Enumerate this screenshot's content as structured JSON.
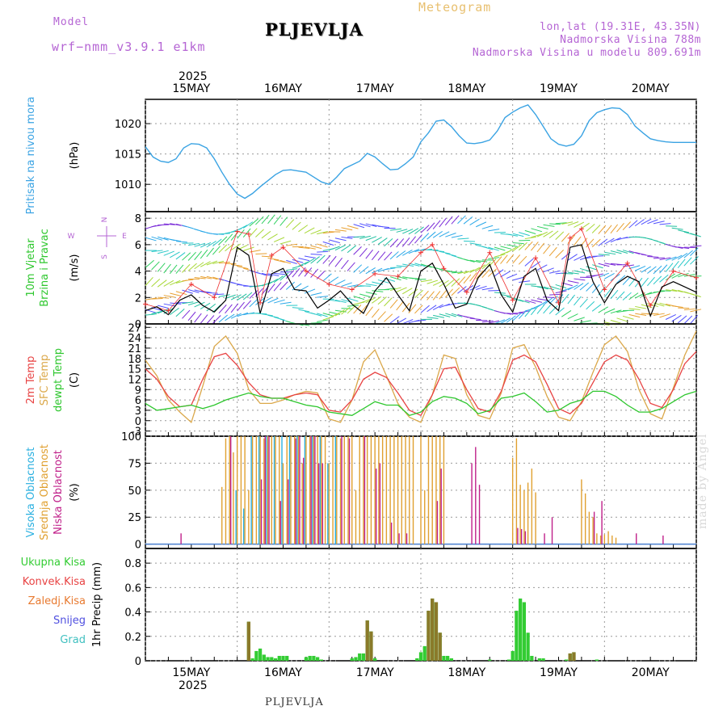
{
  "header": {
    "model_label": "Model",
    "model_name": "wrf−nmm_v3.9.1  e1km",
    "station": "PLJEVLJA",
    "meteogram": "Meteogram",
    "lonlat": "lon,lat (19.31E, 43.35N)",
    "elevation": "Nadmorska Visina 788m",
    "model_elevation": "Nadmorska Visina u modelu 809.691m"
  },
  "footer": {
    "station": "PLJEVLJA",
    "credit": "made by Angel"
  },
  "time_axis": {
    "year": "2025",
    "days": [
      "15MAY",
      "16MAY",
      "17MAY",
      "18MAY",
      "19MAY",
      "20MAY"
    ],
    "start_hour": 0,
    "end_hour": 144
  },
  "colors": {
    "pressure": "#3aa3e3",
    "temp2m": "#e84343",
    "sfc": "#dba84a",
    "dewpt": "#2ec72e",
    "high_cloud": "#2ab0e0",
    "mid_cloud": "#e0a030",
    "low_cloud": "#c0208a",
    "total_precip": "#33cc33",
    "conv_precip": "#e84343",
    "frozen": "#e87a30",
    "snow": "#5050e0",
    "hail": "#40c0c0",
    "wind_speed": "#000000",
    "gust": "#ee3030"
  },
  "chart_data": [
    {
      "type": "line",
      "panel": "pressure",
      "ylabel_lines": [
        "Pritisak na nivou mora"
      ],
      "unit": "(hPa)",
      "yticks": [
        1010,
        1015,
        1020
      ],
      "ylim": [
        1005.5,
        1024
      ],
      "series": [
        {
          "x": [
            0,
            2,
            4,
            6,
            8,
            10,
            12,
            14,
            16,
            18,
            20,
            22,
            24,
            26,
            28,
            30,
            32,
            34,
            36,
            38,
            40,
            42,
            44,
            46,
            48,
            50,
            52,
            54,
            56,
            58,
            60,
            62,
            64,
            66,
            68,
            70,
            72,
            74,
            76,
            78,
            80,
            82,
            84,
            86,
            88,
            90,
            92,
            94,
            96,
            98,
            100,
            102,
            104,
            106,
            108,
            110,
            112,
            114,
            116,
            118,
            120,
            122,
            124,
            126,
            128,
            130,
            132,
            134,
            136,
            138,
            140,
            142,
            144
          ],
          "y": [
            1016.2,
            1014.5,
            1013.8,
            1013.6,
            1014.2,
            1016.0,
            1016.7,
            1016.6,
            1016.0,
            1014.2,
            1012.0,
            1010.0,
            1008.4,
            1007.7,
            1008.5,
            1009.6,
            1010.6,
            1011.6,
            1012.3,
            1012.4,
            1012.2,
            1012.0,
            1011.2,
            1010.4,
            1010.0,
            1011.2,
            1012.6,
            1013.2,
            1013.8,
            1015.1,
            1014.5,
            1013.4,
            1012.4,
            1012.5,
            1013.4,
            1014.5,
            1017.0,
            1018.5,
            1020.4,
            1020.6,
            1019.5,
            1018.0,
            1016.8,
            1016.7,
            1016.9,
            1017.3,
            1018.8,
            1021.0,
            1021.9,
            1022.6,
            1023.1,
            1021.5,
            1019.5,
            1017.5,
            1016.6,
            1016.3,
            1016.6,
            1018.0,
            1020.5,
            1021.8,
            1022.3,
            1022.6,
            1022.5,
            1021.5,
            1019.6,
            1018.5,
            1017.5,
            1017.2,
            1017.0,
            1016.9,
            1016.9,
            1016.9,
            1016.9
          ]
        }
      ]
    },
    {
      "type": "line",
      "panel": "wind",
      "ylabel_lines": [
        "10m Vjetar",
        "Brzina i Pravac"
      ],
      "unit": "(m/s)",
      "yticks": [
        0,
        2,
        4,
        6,
        8
      ],
      "ylim": [
        0,
        8.5
      ],
      "compass": [
        "N",
        "E",
        "S",
        "W"
      ],
      "series": [
        {
          "name": "speed",
          "x": [
            0,
            3,
            6,
            9,
            12,
            15,
            18,
            21,
            24,
            27,
            30,
            33,
            36,
            39,
            42,
            45,
            48,
            51,
            54,
            57,
            60,
            63,
            66,
            69,
            72,
            75,
            78,
            81,
            84,
            87,
            90,
            93,
            96,
            99,
            102,
            105,
            108,
            111,
            114,
            117,
            120,
            123,
            126,
            129,
            132,
            135,
            138,
            141,
            144
          ],
          "y": [
            1.0,
            1.3,
            0.7,
            1.8,
            2.2,
            1.4,
            0.9,
            1.8,
            5.8,
            5.2,
            0.8,
            3.8,
            4.2,
            2.6,
            2.5,
            1.2,
            1.8,
            2.5,
            1.5,
            0.8,
            2.5,
            3.5,
            2.2,
            1.0,
            4.0,
            4.6,
            3.0,
            1.2,
            1.5,
            3.5,
            4.5,
            2.2,
            0.9,
            3.6,
            4.2,
            1.8,
            1.0,
            5.8,
            6.0,
            3.2,
            1.6,
            3.0,
            3.6,
            3.2,
            0.6,
            2.8,
            3.2,
            2.8,
            2.4
          ]
        },
        {
          "name": "gusts",
          "x": [
            0,
            6,
            12,
            18,
            24,
            27,
            30,
            33,
            36,
            42,
            48,
            54,
            60,
            66,
            72,
            75,
            78,
            84,
            90,
            96,
            102,
            108,
            111,
            114,
            120,
            126,
            132,
            138,
            144
          ],
          "y": [
            1.5,
            1.0,
            3.0,
            2.0,
            7.0,
            6.8,
            1.6,
            5.2,
            5.8,
            4.0,
            3.0,
            2.6,
            3.8,
            3.6,
            5.4,
            6.0,
            4.2,
            2.4,
            5.4,
            1.8,
            5.0,
            1.6,
            6.5,
            7.2,
            2.6,
            4.6,
            1.4,
            4.0,
            3.5
          ]
        }
      ]
    },
    {
      "type": "line",
      "panel": "temperature",
      "ylabel_lines": [
        "2m Temp",
        "SFC Temp",
        "dewpt Temp"
      ],
      "unit": "(C)",
      "yticks": [
        -3,
        0,
        3,
        6,
        9,
        12,
        15,
        18,
        21,
        24,
        27
      ],
      "ylim": [
        -4.5,
        28
      ],
      "x": [
        0,
        3,
        6,
        9,
        12,
        15,
        18,
        21,
        24,
        27,
        30,
        33,
        36,
        39,
        42,
        45,
        48,
        51,
        54,
        57,
        60,
        63,
        66,
        69,
        72,
        75,
        78,
        81,
        84,
        87,
        90,
        93,
        96,
        99,
        102,
        105,
        108,
        111,
        114,
        117,
        120,
        123,
        126,
        129,
        132,
        135,
        138,
        141,
        144
      ],
      "series": [
        {
          "name": "2m Temp",
          "y": [
            15.0,
            12.0,
            7.0,
            4.0,
            4.5,
            12.0,
            18.5,
            19.5,
            16.0,
            11.0,
            7.5,
            6.5,
            6.5,
            7.5,
            8.0,
            7.5,
            3.0,
            2.5,
            6.0,
            12.0,
            14.0,
            12.5,
            8.0,
            3.0,
            1.5,
            7.5,
            15.0,
            15.5,
            9.0,
            3.5,
            2.5,
            8.5,
            17.5,
            19.0,
            17.0,
            10.5,
            3.5,
            2.0,
            5.0,
            11.0,
            17.0,
            19.0,
            17.5,
            12.0,
            5.0,
            3.8,
            9.0,
            16.5,
            20.0
          ]
        },
        {
          "name": "SFC Temp",
          "y": [
            17.5,
            13.0,
            6.0,
            2.5,
            -0.5,
            10.0,
            21.5,
            24.5,
            19.5,
            9.0,
            5.0,
            5.0,
            6.0,
            7.5,
            8.5,
            8.0,
            0.5,
            -0.5,
            6.0,
            17.0,
            20.5,
            13.0,
            5.0,
            1.0,
            -0.5,
            7.5,
            19.0,
            18.0,
            7.5,
            1.5,
            0.5,
            8.0,
            21.0,
            22.0,
            15.5,
            7.0,
            1.0,
            0.0,
            5.5,
            14.0,
            22.0,
            24.5,
            20.0,
            9.0,
            2.0,
            0.5,
            9.5,
            19.0,
            26.0
          ]
        },
        {
          "name": "dewpt Temp",
          "y": [
            5.0,
            3.0,
            3.5,
            4.0,
            4.5,
            3.5,
            4.5,
            6.0,
            7.0,
            8.0,
            7.0,
            6.5,
            6.5,
            5.5,
            4.5,
            4.0,
            2.5,
            2.0,
            1.5,
            3.5,
            5.5,
            4.5,
            4.5,
            1.5,
            2.5,
            5.5,
            7.0,
            6.5,
            5.0,
            2.0,
            3.0,
            6.5,
            7.0,
            8.0,
            5.5,
            2.5,
            3.0,
            5.0,
            6.0,
            8.5,
            8.5,
            7.0,
            4.5,
            2.5,
            2.5,
            3.5,
            5.5,
            7.5,
            8.5
          ]
        }
      ]
    },
    {
      "type": "bar",
      "panel": "cloud",
      "ylabel_lines": [
        "Visoka Oblacnost",
        "Srednja Oblacnost",
        "Niska Oblacnost"
      ],
      "unit": "(%)",
      "yticks": [
        0,
        25,
        50,
        75,
        100
      ],
      "ylim": [
        -4,
        100
      ],
      "series": [
        {
          "name": "Visoka Oblacnost",
          "x": [
            24,
            26,
            28,
            30,
            32,
            34,
            36,
            38,
            40,
            42,
            44,
            46,
            48,
            50
          ],
          "y": [
            50,
            33,
            100,
            100,
            100,
            100,
            100,
            100,
            100,
            100,
            100,
            100,
            75,
            100
          ]
        },
        {
          "name": "Srednja Oblacnost",
          "x": [
            20,
            21,
            22,
            23,
            24,
            25,
            26,
            27,
            28,
            29,
            30,
            31,
            32,
            33,
            34,
            35,
            36,
            37,
            38,
            39,
            40,
            41,
            42,
            43,
            44,
            45,
            46,
            47,
            48,
            49,
            50,
            51,
            52,
            53,
            54,
            55,
            56,
            57,
            58,
            59,
            60,
            61,
            62,
            63,
            64,
            65,
            66,
            67,
            68,
            69,
            70,
            72,
            73,
            74,
            75,
            76,
            77,
            78,
            96,
            97,
            98,
            99,
            100,
            101,
            102,
            114,
            115,
            116,
            117,
            118,
            119,
            120,
            121,
            122,
            123
          ],
          "y": [
            53,
            98,
            100,
            85,
            100,
            100,
            100,
            50,
            100,
            100,
            100,
            98,
            100,
            100,
            100,
            100,
            75,
            100,
            100,
            100,
            100,
            75,
            100,
            100,
            100,
            100,
            100,
            100,
            75,
            100,
            100,
            98,
            100,
            100,
            100,
            50,
            100,
            100,
            100,
            100,
            100,
            100,
            100,
            100,
            100,
            100,
            100,
            100,
            100,
            100,
            100,
            100,
            50,
            100,
            100,
            100,
            100,
            100,
            80,
            98,
            55,
            50,
            57,
            70,
            48,
            60,
            47,
            30,
            25,
            10,
            8,
            9,
            12,
            8,
            6
          ]
        },
        {
          "name": "Niska Oblacnost",
          "x": [
            9,
            22,
            30,
            31,
            32,
            35,
            37,
            39,
            40,
            41,
            43,
            44,
            45,
            46,
            51,
            53,
            57,
            60,
            61,
            64,
            66,
            68,
            76,
            77,
            85,
            86,
            87,
            97,
            98,
            99,
            104,
            106,
            117,
            119,
            128,
            135
          ],
          "y": [
            10,
            100,
            60,
            100,
            100,
            40,
            60,
            98,
            100,
            80,
            100,
            100,
            75,
            75,
            100,
            98,
            100,
            70,
            75,
            20,
            10,
            10,
            40,
            70,
            75,
            90,
            55,
            15,
            14,
            12,
            10,
            25,
            30,
            40,
            10,
            8
          ]
        }
      ]
    },
    {
      "type": "bar",
      "panel": "precip",
      "ylabel_lines": [
        "Ukupna Kisa",
        "Konvek.Kisa",
        "Zaledj.Kisa",
        "Snijeg",
        "Grad"
      ],
      "unit": "1hr Precip (mm)",
      "yticks": [
        0,
        0.2,
        0.4,
        0.6,
        0.8
      ],
      "ylim": [
        0,
        0.92
      ],
      "series": [
        {
          "name": "Ukupna Kisa",
          "x": [
            27,
            28,
            29,
            30,
            31,
            32,
            33,
            34,
            35,
            36,
            37,
            42,
            43,
            44,
            45,
            46,
            54,
            55,
            56,
            57,
            58,
            59,
            60,
            71,
            72,
            73,
            74,
            75,
            76,
            77,
            78,
            79,
            80,
            90,
            95,
            96,
            97,
            98,
            99,
            100,
            101,
            103,
            104,
            110,
            111,
            112,
            118
          ],
          "y": [
            0.32,
            0.02,
            0.08,
            0.1,
            0.05,
            0.03,
            0.03,
            0.02,
            0.04,
            0.04,
            0.04,
            0.03,
            0.04,
            0.04,
            0.03,
            0.01,
            0.02,
            0.03,
            0.06,
            0.06,
            0.33,
            0.24,
            0.02,
            0.02,
            0.07,
            0.12,
            0.41,
            0.51,
            0.48,
            0.23,
            0.04,
            0.04,
            0.02,
            0.01,
            0.01,
            0.08,
            0.41,
            0.51,
            0.48,
            0.23,
            0.04,
            0.02,
            0.02,
            0.01,
            0.06,
            0.07,
            0.01
          ]
        },
        {
          "name": "Konvek.Kisa",
          "x": [
            27,
            58,
            59,
            74,
            75,
            76,
            77,
            111,
            112
          ],
          "y": [
            0.32,
            0.33,
            0.24,
            0.41,
            0.51,
            0.48,
            0.23,
            0.06,
            0.07
          ]
        }
      ]
    }
  ]
}
